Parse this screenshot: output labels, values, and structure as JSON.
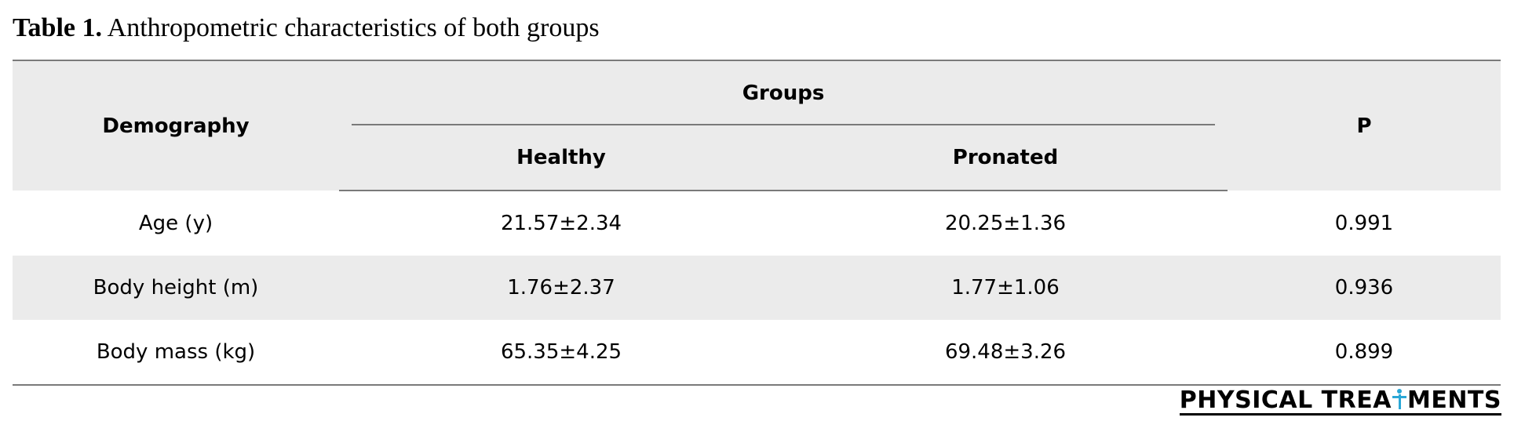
{
  "caption": {
    "label": "Table 1.",
    "text": "Anthropometric characteristics of both groups"
  },
  "table": {
    "header": {
      "demography": "Demography",
      "groups": "Groups",
      "healthy": "Healthy",
      "pronated": "Pronated",
      "p": "P"
    },
    "rows": [
      {
        "label": "Age (y)",
        "healthy": "21.57±2.34",
        "pronated": "20.25±1.36",
        "p": "0.991"
      },
      {
        "label": "Body height (m)",
        "healthy": "1.76±2.37",
        "pronated": "1.77±1.06",
        "p": "0.936"
      },
      {
        "label": "Body mass (kg)",
        "healthy": "65.35±4.25",
        "pronated": "69.48±3.26",
        "p": "0.899"
      }
    ]
  },
  "brand": {
    "part1": "PHYSICAL TREA",
    "part2": "MENTS",
    "icon": "person-icon",
    "icon_color": "#2aa7d6"
  }
}
